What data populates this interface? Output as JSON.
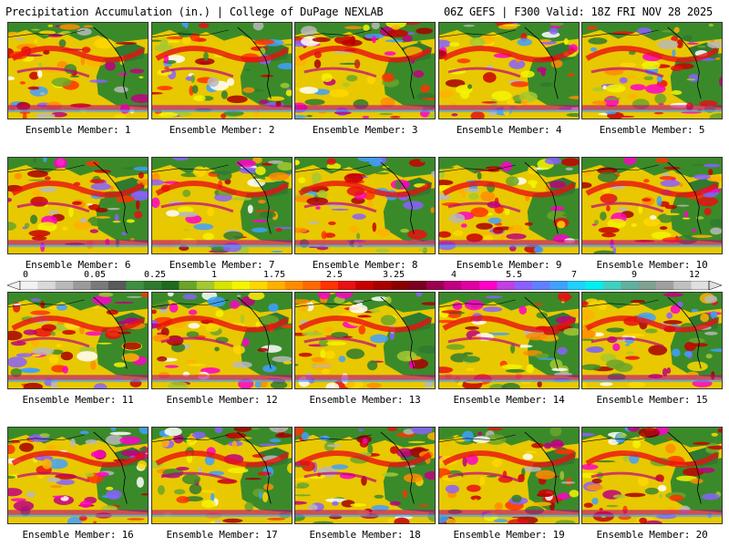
{
  "header": {
    "title_left": "Precipitation Accumulation (in.) | College of DuPage NEXLAB",
    "title_right": "06Z GEFS | F300 Valid: 18Z FRI NOV 28 2025"
  },
  "panels": [
    {
      "label": "Ensemble Member: 1"
    },
    {
      "label": "Ensemble Member: 2"
    },
    {
      "label": "Ensemble Member: 3"
    },
    {
      "label": "Ensemble Member: 4"
    },
    {
      "label": "Ensemble Member: 5"
    },
    {
      "label": "Ensemble Member: 6"
    },
    {
      "label": "Ensemble Member: 7"
    },
    {
      "label": "Ensemble Member: 8"
    },
    {
      "label": "Ensemble Member: 9"
    },
    {
      "label": "Ensemble Member: 10"
    },
    {
      "label": "Ensemble Member: 11"
    },
    {
      "label": "Ensemble Member: 12"
    },
    {
      "label": "Ensemble Member: 13"
    },
    {
      "label": "Ensemble Member: 14"
    },
    {
      "label": "Ensemble Member: 15"
    },
    {
      "label": "Ensemble Member: 16"
    },
    {
      "label": "Ensemble Member: 17"
    },
    {
      "label": "Ensemble Member: 18"
    },
    {
      "label": "Ensemble Member: 19"
    },
    {
      "label": "Ensemble Member: 20"
    }
  ],
  "colorbar": {
    "tick_labels": [
      "0",
      "0.05",
      "0.25",
      "1",
      "1.75",
      "2.5",
      "3.25",
      "4",
      "5.5",
      "7",
      "9",
      "12"
    ],
    "colors": [
      "#f2f2f2",
      "#d9d9d9",
      "#b9b9b9",
      "#9a9a9a",
      "#7a7a7a",
      "#5a5a5a",
      "#3f8f3f",
      "#2f7a2f",
      "#1f6a1f",
      "#6aa52a",
      "#a4c832",
      "#d6e400",
      "#f5f500",
      "#ffd700",
      "#ffb000",
      "#ff8c00",
      "#ff6a00",
      "#ff3300",
      "#e81010",
      "#c80000",
      "#a80000",
      "#8a0000",
      "#7a0020",
      "#9a0050",
      "#c00080",
      "#e000a0",
      "#ff00c8",
      "#c040e0",
      "#8a60ff",
      "#6080ff",
      "#40a0ff",
      "#20d0ff",
      "#00f0f0",
      "#40d0c0",
      "#60b0a0",
      "#80a090",
      "#a0a0a0",
      "#c0c0c0",
      "#e0e0e0"
    ],
    "ocean_color": "#e8d040",
    "land_color": "#3b8a2a"
  }
}
